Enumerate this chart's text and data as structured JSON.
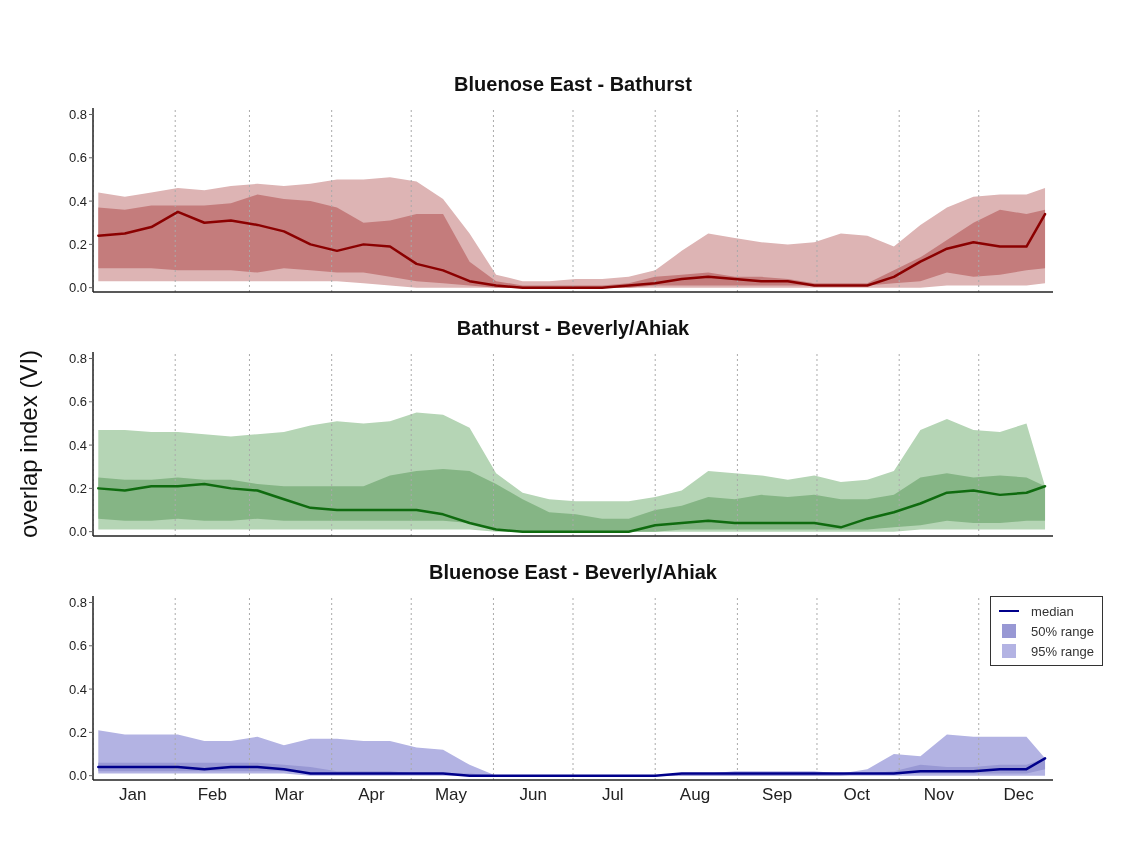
{
  "chart_data": [
    {
      "type": "line",
      "title": "Bluenose East - Bathurst",
      "tick_labels": "y",
      "grid": "x",
      "marker": "none",
      "line_style": "solid",
      "legend": false,
      "x": [
        "--01-03",
        "--01-13",
        "--01-23",
        "--02-02",
        "--02-12",
        "--02-22",
        "--03-04",
        "--03-14",
        "--03-24",
        "--04-03",
        "--04-13",
        "--04-23",
        "--05-03",
        "--05-13",
        "--05-23",
        "--06-02",
        "--06-12",
        "--06-22",
        "--07-02",
        "--07-12",
        "--07-22",
        "--08-01",
        "--08-11",
        "--08-21",
        "--08-31",
        "--09-10",
        "--09-20",
        "--09-30",
        "--10-10",
        "--10-20",
        "--10-30",
        "--11-09",
        "--11-19",
        "--11-29",
        "--12-09",
        "--12-19",
        "--12-26"
      ],
      "xlim": [
        "--01-01",
        "--12-29"
      ],
      "xticks": [
        {
          "value": "--01-01",
          "label": null
        },
        {
          "value": "--02-01",
          "label": null
        },
        {
          "value": "--03-01",
          "label": null
        },
        {
          "value": "--04-01",
          "label": null
        },
        {
          "value": "--05-01",
          "label": null
        },
        {
          "value": "--06-01",
          "label": null
        },
        {
          "value": "--07-01",
          "label": null
        },
        {
          "value": "--08-01",
          "label": null
        },
        {
          "value": "--09-01",
          "label": null
        },
        {
          "value": "--10-01",
          "label": null
        },
        {
          "value": "--11-01",
          "label": null
        },
        {
          "value": "--12-01",
          "label": null
        }
      ],
      "ylim": [
        -0.02,
        0.83
      ],
      "yticks": [
        {
          "value": 0,
          "label": "0.0"
        },
        {
          "value": 0.2,
          "label": "0.2"
        },
        {
          "value": 0.4,
          "label": "0.4"
        },
        {
          "value": 0.6,
          "label": "0.6"
        },
        {
          "value": 0.8,
          "label": "0.8"
        }
      ],
      "series": [
        {
          "color": "#8b0000",
          "values": [
            0.24,
            0.25,
            0.28,
            0.35,
            0.3,
            0.31,
            0.29,
            0.26,
            0.2,
            0.17,
            0.2,
            0.19,
            0.11,
            0.08,
            0.03,
            0.01,
            0,
            0,
            0,
            0,
            0.01,
            0.02,
            0.04,
            0.05,
            0.04,
            0.03,
            0.03,
            0.01,
            0.01,
            0.01,
            0.05,
            0.12,
            0.18,
            0.21,
            0.19,
            0.19,
            0.34
          ]
        },
        {
          "type": "area",
          "color": "#c47c7c",
          "values": [
            null,
            null,
            null,
            null,
            null,
            null,
            null,
            null,
            null,
            null,
            null,
            null,
            null,
            null,
            null,
            null,
            null,
            null,
            null,
            null,
            null,
            null,
            null,
            null,
            null,
            null,
            null,
            null,
            null,
            null,
            null,
            null,
            null,
            null,
            null,
            null,
            null
          ],
          "lower": [
            0.09,
            0.09,
            0.09,
            0.08,
            0.08,
            0.08,
            0.07,
            0.09,
            0.08,
            0.07,
            0.07,
            0.05,
            0.03,
            0.02,
            0.01,
            0,
            0,
            0,
            0,
            0,
            0,
            0.01,
            0.01,
            0.01,
            0.01,
            0.01,
            0.01,
            0.01,
            0.01,
            0.01,
            0.02,
            0.03,
            0.07,
            0.05,
            0.06,
            0.08,
            0.09
          ],
          "upper": [
            0.37,
            0.36,
            0.38,
            0.38,
            0.38,
            0.39,
            0.43,
            0.41,
            0.4,
            0.37,
            0.3,
            0.31,
            0.34,
            0.34,
            0.12,
            0.03,
            0.01,
            0.01,
            0.01,
            0.01,
            0.02,
            0.05,
            0.06,
            0.07,
            0.05,
            0.05,
            0.04,
            0.02,
            0.02,
            0.02,
            0.08,
            0.14,
            0.22,
            0.3,
            0.36,
            0.34,
            0.36
          ]
        },
        {
          "type": "area",
          "color": "#ddb4b4",
          "values": [
            null,
            null,
            null,
            null,
            null,
            null,
            null,
            null,
            null,
            null,
            null,
            null,
            null,
            null,
            null,
            null,
            null,
            null,
            null,
            null,
            null,
            null,
            null,
            null,
            null,
            null,
            null,
            null,
            null,
            null,
            null,
            null,
            null,
            null,
            null,
            null,
            null
          ],
          "lower": [
            0.03,
            0.03,
            0.03,
            0.03,
            0.03,
            0.03,
            0.03,
            0.03,
            0.03,
            0.03,
            0.02,
            0.01,
            0,
            0,
            0,
            0,
            0,
            0,
            0,
            0,
            0,
            0,
            0,
            0,
            0,
            0,
            0,
            0,
            0,
            0,
            0,
            0,
            0.01,
            0.01,
            0.01,
            0.01,
            0.02
          ],
          "upper": [
            0.44,
            0.42,
            0.44,
            0.46,
            0.45,
            0.47,
            0.48,
            0.47,
            0.48,
            0.5,
            0.5,
            0.51,
            0.49,
            0.41,
            0.25,
            0.06,
            0.03,
            0.03,
            0.04,
            0.04,
            0.05,
            0.08,
            0.17,
            0.25,
            0.23,
            0.21,
            0.2,
            0.21,
            0.25,
            0.24,
            0.19,
            0.29,
            0.37,
            0.42,
            0.43,
            0.43,
            0.46
          ]
        }
      ]
    },
    {
      "type": "line",
      "title": "Bathurst - Beverly/Ahiak",
      "ylabel": "overlap index (VI)",
      "tick_labels": "y",
      "grid": "x",
      "marker": "none",
      "line_style": "solid",
      "legend": false,
      "x": [
        "--01-03",
        "--01-13",
        "--01-23",
        "--02-02",
        "--02-12",
        "--02-22",
        "--03-04",
        "--03-14",
        "--03-24",
        "--04-03",
        "--04-13",
        "--04-23",
        "--05-03",
        "--05-13",
        "--05-23",
        "--06-02",
        "--06-12",
        "--06-22",
        "--07-02",
        "--07-12",
        "--07-22",
        "--08-01",
        "--08-11",
        "--08-21",
        "--08-31",
        "--09-10",
        "--09-20",
        "--09-30",
        "--10-10",
        "--10-20",
        "--10-30",
        "--11-09",
        "--11-19",
        "--11-29",
        "--12-09",
        "--12-19",
        "--12-26"
      ],
      "xlim": [
        "--01-01",
        "--12-29"
      ],
      "xticks": [
        {
          "value": "--01-01",
          "label": null
        },
        {
          "value": "--02-01",
          "label": null
        },
        {
          "value": "--03-01",
          "label": null
        },
        {
          "value": "--04-01",
          "label": null
        },
        {
          "value": "--05-01",
          "label": null
        },
        {
          "value": "--06-01",
          "label": null
        },
        {
          "value": "--07-01",
          "label": null
        },
        {
          "value": "--08-01",
          "label": null
        },
        {
          "value": "--09-01",
          "label": null
        },
        {
          "value": "--10-01",
          "label": null
        },
        {
          "value": "--11-01",
          "label": null
        },
        {
          "value": "--12-01",
          "label": null
        }
      ],
      "ylim": [
        -0.02,
        0.83
      ],
      "yticks": [
        {
          "value": 0,
          "label": "0.0"
        },
        {
          "value": 0.2,
          "label": "0.2"
        },
        {
          "value": 0.4,
          "label": "0.4"
        },
        {
          "value": 0.6,
          "label": "0.6"
        },
        {
          "value": 0.8,
          "label": "0.8"
        }
      ],
      "series": [
        {
          "color": "#0f6b0f",
          "values": [
            0.2,
            0.19,
            0.21,
            0.21,
            0.22,
            0.2,
            0.19,
            0.15,
            0.11,
            0.1,
            0.1,
            0.1,
            0.1,
            0.08,
            0.04,
            0.01,
            0,
            0,
            0,
            0,
            0,
            0.03,
            0.04,
            0.05,
            0.04,
            0.04,
            0.04,
            0.04,
            0.02,
            0.06,
            0.09,
            0.13,
            0.18,
            0.19,
            0.17,
            0.18,
            0.21
          ]
        },
        {
          "type": "area",
          "color": "#85b585",
          "values": [
            null,
            null,
            null,
            null,
            null,
            null,
            null,
            null,
            null,
            null,
            null,
            null,
            null,
            null,
            null,
            null,
            null,
            null,
            null,
            null,
            null,
            null,
            null,
            null,
            null,
            null,
            null,
            null,
            null,
            null,
            null,
            null,
            null,
            null,
            null,
            null,
            null
          ],
          "lower": [
            0.06,
            0.05,
            0.05,
            0.06,
            0.05,
            0.05,
            0.06,
            0.05,
            0.05,
            0.05,
            0.05,
            0.05,
            0.05,
            0.05,
            0.04,
            0.01,
            0,
            0,
            0,
            0,
            0,
            0,
            0.01,
            0.01,
            0.01,
            0.01,
            0.01,
            0.01,
            0.01,
            0.01,
            0.02,
            0.03,
            0.05,
            0.04,
            0.04,
            0.05,
            0.05
          ],
          "upper": [
            0.25,
            0.24,
            0.24,
            0.25,
            0.24,
            0.24,
            0.22,
            0.21,
            0.21,
            0.21,
            0.21,
            0.26,
            0.28,
            0.29,
            0.28,
            0.22,
            0.15,
            0.09,
            0.08,
            0.06,
            0.06,
            0.1,
            0.12,
            0.16,
            0.15,
            0.17,
            0.16,
            0.17,
            0.15,
            0.15,
            0.17,
            0.25,
            0.27,
            0.25,
            0.26,
            0.25,
            0.21
          ]
        },
        {
          "type": "area",
          "color": "#b5d5b5",
          "values": [
            null,
            null,
            null,
            null,
            null,
            null,
            null,
            null,
            null,
            null,
            null,
            null,
            null,
            null,
            null,
            null,
            null,
            null,
            null,
            null,
            null,
            null,
            null,
            null,
            null,
            null,
            null,
            null,
            null,
            null,
            null,
            null,
            null,
            null,
            null,
            null,
            null
          ],
          "lower": [
            0.01,
            0.01,
            0.01,
            0.01,
            0.01,
            0.01,
            0.01,
            0.01,
            0.01,
            0.01,
            0.01,
            0.01,
            0.01,
            0.01,
            0.01,
            0,
            0,
            0,
            0,
            0,
            0,
            0,
            0,
            0,
            0,
            0,
            0,
            0,
            0,
            0,
            0,
            0.01,
            0.01,
            0.01,
            0.01,
            0.01,
            0.01
          ],
          "upper": [
            0.47,
            0.47,
            0.46,
            0.46,
            0.45,
            0.44,
            0.45,
            0.46,
            0.49,
            0.51,
            0.5,
            0.51,
            0.55,
            0.54,
            0.48,
            0.27,
            0.18,
            0.15,
            0.14,
            0.14,
            0.14,
            0.16,
            0.19,
            0.28,
            0.27,
            0.26,
            0.24,
            0.26,
            0.23,
            0.24,
            0.28,
            0.47,
            0.52,
            0.47,
            0.46,
            0.5,
            0.21
          ]
        }
      ]
    },
    {
      "type": "line",
      "title": "Bluenose East - Beverly/Ahiak",
      "grid": "x",
      "marker": "none",
      "line_style": "solid",
      "legend": "top right",
      "x": [
        "--01-03",
        "--01-13",
        "--01-23",
        "--02-02",
        "--02-12",
        "--02-22",
        "--03-04",
        "--03-14",
        "--03-24",
        "--04-03",
        "--04-13",
        "--04-23",
        "--05-03",
        "--05-13",
        "--05-23",
        "--06-02",
        "--06-12",
        "--06-22",
        "--07-02",
        "--07-12",
        "--07-22",
        "--08-01",
        "--08-11",
        "--08-21",
        "--08-31",
        "--09-10",
        "--09-20",
        "--09-30",
        "--10-10",
        "--10-20",
        "--10-30",
        "--11-09",
        "--11-19",
        "--11-29",
        "--12-09",
        "--12-19",
        "--12-26"
      ],
      "xlim": [
        "--01-01",
        "--12-29"
      ],
      "xticks": [
        {
          "value": "--01-01",
          "label": null
        },
        {
          "value": "--01-16",
          "label": "Jan"
        },
        {
          "value": "--02-01",
          "label": null
        },
        {
          "value": "--02-15",
          "label": "Feb"
        },
        {
          "value": "--03-01",
          "label": null
        },
        {
          "value": "--03-16",
          "label": "Mar"
        },
        {
          "value": "--04-01",
          "label": null
        },
        {
          "value": "--04-16",
          "label": "Apr"
        },
        {
          "value": "--05-01",
          "label": null
        },
        {
          "value": "--05-16",
          "label": "May"
        },
        {
          "value": "--06-01",
          "label": null
        },
        {
          "value": "--06-16",
          "label": "Jun"
        },
        {
          "value": "--07-01",
          "label": null
        },
        {
          "value": "--07-16",
          "label": "Jul"
        },
        {
          "value": "--08-01",
          "label": null
        },
        {
          "value": "--08-16",
          "label": "Aug"
        },
        {
          "value": "--09-01",
          "label": null
        },
        {
          "value": "--09-16",
          "label": "Sep"
        },
        {
          "value": "--10-01",
          "label": null
        },
        {
          "value": "--10-16",
          "label": "Oct"
        },
        {
          "value": "--11-01",
          "label": null
        },
        {
          "value": "--11-16",
          "label": "Nov"
        },
        {
          "value": "--12-01",
          "label": null
        },
        {
          "value": "--12-16",
          "label": "Dec"
        }
      ],
      "ylim": [
        -0.02,
        0.83
      ],
      "yticks": [
        {
          "value": 0,
          "label": "0.0"
        },
        {
          "value": 0.2,
          "label": "0.2"
        },
        {
          "value": 0.4,
          "label": "0.4"
        },
        {
          "value": 0.6,
          "label": "0.6"
        },
        {
          "value": 0.8,
          "label": "0.8"
        }
      ],
      "series": [
        {
          "name": "median",
          "color": "#00008b",
          "values": [
            0.04,
            0.04,
            0.04,
            0.04,
            0.03,
            0.04,
            0.04,
            0.03,
            0.01,
            0.01,
            0.01,
            0.01,
            0.01,
            0.01,
            0,
            0,
            0,
            0,
            0,
            0,
            0,
            0,
            0.01,
            0.01,
            0.01,
            0.01,
            0.01,
            0.01,
            0.01,
            0.01,
            0.01,
            0.02,
            0.02,
            0.02,
            0.03,
            0.03,
            0.08
          ]
        },
        {
          "type": "area",
          "name": "50% range",
          "color": "#9898d4",
          "values": [
            null,
            null,
            null,
            null,
            null,
            null,
            null,
            null,
            null,
            null,
            null,
            null,
            null,
            null,
            null,
            null,
            null,
            null,
            null,
            null,
            null,
            null,
            null,
            null,
            null,
            null,
            null,
            null,
            null,
            null,
            null,
            null,
            null,
            null,
            null,
            null,
            null
          ],
          "lower": [
            0.02,
            0.02,
            0.02,
            0.02,
            0.02,
            0.02,
            0.02,
            0.02,
            0.01,
            0.01,
            0.01,
            0.01,
            0.01,
            0.01,
            0,
            0,
            0,
            0,
            0,
            0,
            0,
            0,
            0,
            0,
            0,
            0,
            0,
            0,
            0,
            0.01,
            0.01,
            0.01,
            0.01,
            0.01,
            0.01,
            0.01,
            0.03
          ],
          "upper": [
            0.06,
            0.06,
            0.06,
            0.06,
            0.06,
            0.06,
            0.06,
            0.05,
            0.04,
            0.02,
            0.02,
            0.02,
            0.01,
            0.01,
            0.01,
            0,
            0,
            0,
            0,
            0,
            0,
            0,
            0.01,
            0.01,
            0.01,
            0.01,
            0.01,
            0.01,
            0.01,
            0.01,
            0.02,
            0.05,
            0.04,
            0.04,
            0.05,
            0.05,
            0.08
          ]
        },
        {
          "type": "area",
          "name": "95% range",
          "color": "#b3b3e3",
          "values": [
            null,
            null,
            null,
            null,
            null,
            null,
            null,
            null,
            null,
            null,
            null,
            null,
            null,
            null,
            null,
            null,
            null,
            null,
            null,
            null,
            null,
            null,
            null,
            null,
            null,
            null,
            null,
            null,
            null,
            null,
            null,
            null,
            null,
            null,
            null,
            null,
            null
          ],
          "lower": [
            0.01,
            0.01,
            0.01,
            0.01,
            0.01,
            0.01,
            0.01,
            0.01,
            0,
            0,
            0,
            0,
            0,
            0,
            0,
            0,
            0,
            0,
            0,
            0,
            0,
            0,
            0,
            0,
            0,
            0,
            0,
            0,
            0,
            0,
            0,
            0,
            0,
            0,
            0,
            0,
            0
          ],
          "upper": [
            0.21,
            0.19,
            0.19,
            0.19,
            0.16,
            0.16,
            0.18,
            0.14,
            0.17,
            0.17,
            0.16,
            0.16,
            0.13,
            0.12,
            0.05,
            0,
            0,
            0,
            0,
            0,
            0,
            0,
            0.01,
            0.01,
            0.02,
            0.02,
            0.02,
            0.02,
            0.01,
            0.03,
            0.1,
            0.09,
            0.19,
            0.18,
            0.18,
            0.18,
            0.08
          ]
        }
      ]
    }
  ]
}
